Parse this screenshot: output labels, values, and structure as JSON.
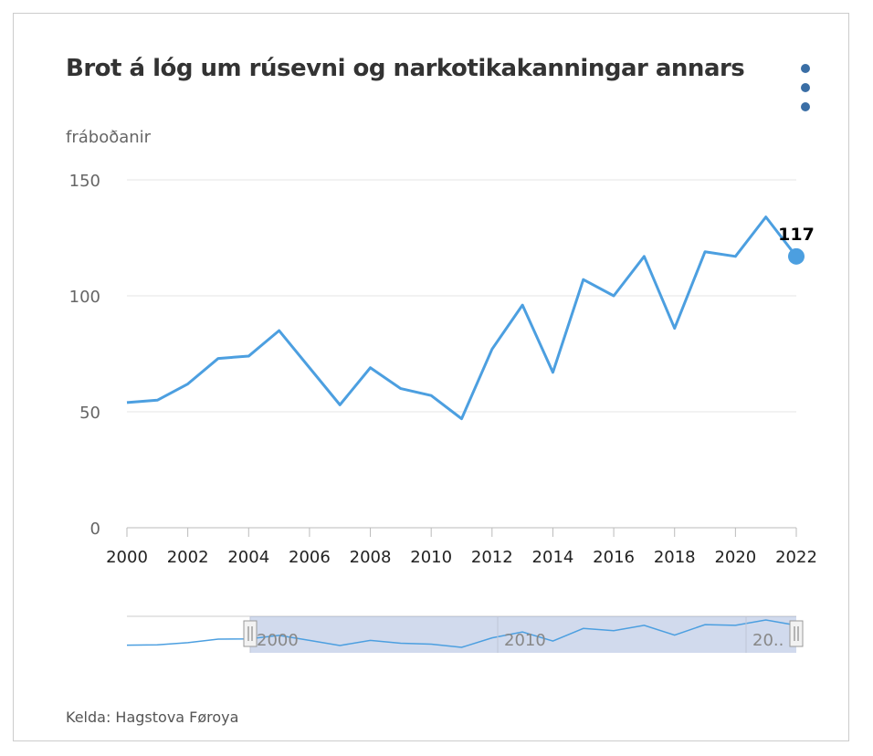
{
  "chart_data": {
    "type": "line",
    "title": "Brot á lóg um rúsevni og narkotikakanningar annars",
    "subtitle": "fráboðanir",
    "x": [
      2000,
      2001,
      2002,
      2003,
      2004,
      2005,
      2006,
      2007,
      2008,
      2009,
      2010,
      2011,
      2012,
      2013,
      2014,
      2015,
      2016,
      2017,
      2018,
      2019,
      2020,
      2021,
      2022
    ],
    "series": [
      {
        "name": "fráboðanir",
        "values": [
          54,
          55,
          62,
          73,
          74,
          85,
          69,
          53,
          69,
          60,
          57,
          47,
          77,
          96,
          67,
          107,
          100,
          117,
          86,
          119,
          117,
          134,
          117
        ]
      }
    ],
    "ylim": [
      0,
      150
    ],
    "yticks": [
      0,
      50,
      100,
      150
    ],
    "xticks": [
      "2000",
      "2002",
      "2004",
      "2006",
      "2008",
      "2010",
      "2012",
      "2014",
      "2016",
      "2018",
      "2020",
      "2022"
    ],
    "annotation": "117",
    "navigator_labels": [
      "2000",
      "2010",
      "20.."
    ],
    "grid": true,
    "color": "#4c9fe0"
  },
  "credit": "Kelda: Hagstova Føroya"
}
